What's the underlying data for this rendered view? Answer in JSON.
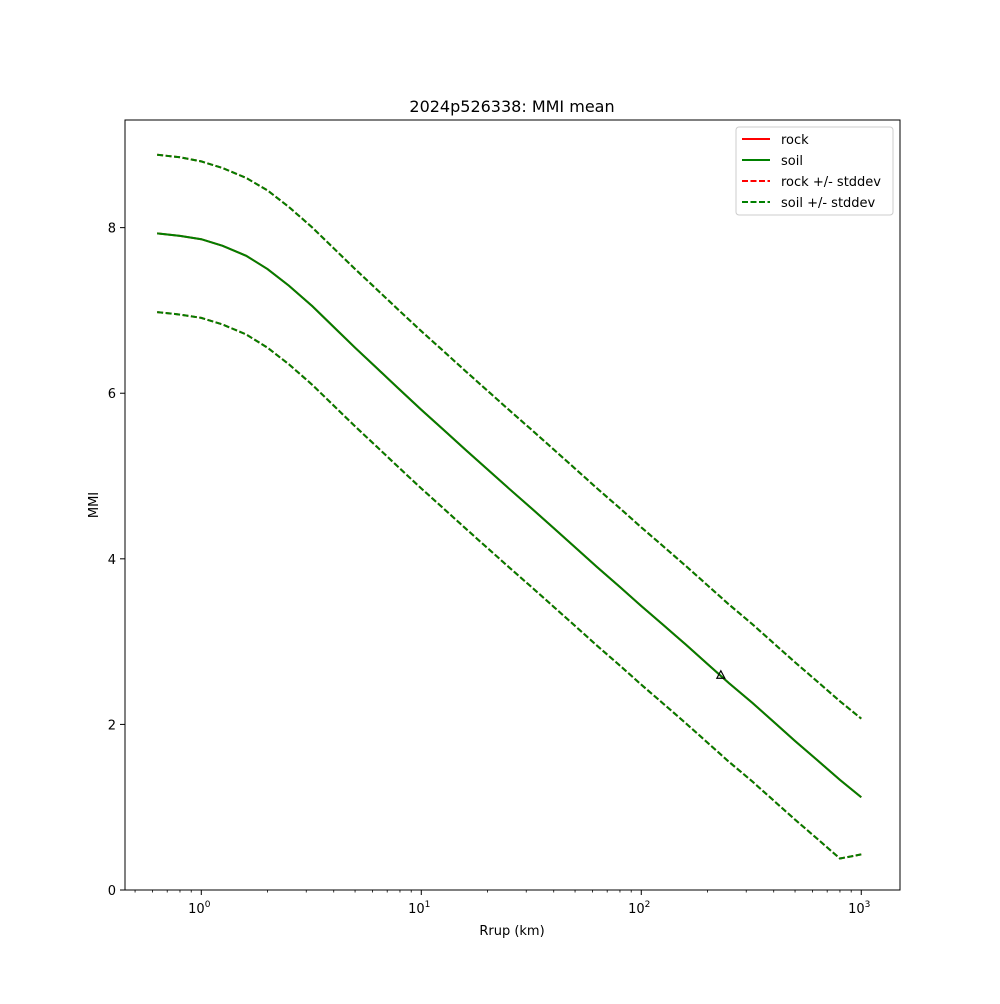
{
  "chart_data": {
    "type": "line",
    "title": "2024p526338: MMI mean",
    "xlabel": "Rrup (km)",
    "ylabel": "MMI",
    "xscale": "log",
    "xlim": [
      0.45,
      1500
    ],
    "ylim": [
      0,
      9.3
    ],
    "x_ticks": [
      {
        "value": 1,
        "base": "10",
        "exp": "0"
      },
      {
        "value": 10,
        "base": "10",
        "exp": "1"
      },
      {
        "value": 100,
        "base": "10",
        "exp": "2"
      },
      {
        "value": 1000,
        "base": "10",
        "exp": "3"
      }
    ],
    "y_ticks": [
      0,
      2,
      4,
      6,
      8
    ],
    "grid": false,
    "legend_position": "top-right",
    "x": [
      0.63,
      0.8,
      1,
      1.25,
      1.6,
      2,
      2.5,
      3.2,
      4,
      5,
      6.3,
      8,
      10,
      12.6,
      16,
      20,
      25,
      32,
      40,
      50,
      63,
      80,
      100,
      126,
      160,
      200,
      250,
      320,
      400,
      500,
      630,
      800,
      1000
    ],
    "series": [
      {
        "name": "rock",
        "color": "#ff0000",
        "style": "solid",
        "values": [
          7.93,
          7.9,
          7.86,
          7.78,
          7.66,
          7.5,
          7.3,
          7.05,
          6.8,
          6.55,
          6.3,
          6.04,
          5.8,
          5.56,
          5.31,
          5.08,
          4.85,
          4.6,
          4.37,
          4.14,
          3.9,
          3.66,
          3.43,
          3.2,
          2.96,
          2.73,
          2.5,
          2.26,
          2.03,
          1.8,
          1.57,
          1.33,
          1.12
        ]
      },
      {
        "name": "soil",
        "color": "#008000",
        "style": "solid",
        "values": [
          7.93,
          7.9,
          7.86,
          7.78,
          7.66,
          7.5,
          7.3,
          7.05,
          6.8,
          6.55,
          6.3,
          6.04,
          5.8,
          5.56,
          5.31,
          5.08,
          4.85,
          4.6,
          4.37,
          4.14,
          3.9,
          3.66,
          3.43,
          3.2,
          2.96,
          2.73,
          2.5,
          2.26,
          2.03,
          1.8,
          1.57,
          1.33,
          1.12
        ]
      },
      {
        "name": "rock +/- stddev",
        "color": "#ff0000",
        "style": "dashed",
        "values": [
          8.88,
          8.85,
          8.8,
          8.72,
          8.6,
          8.45,
          8.25,
          8.0,
          7.75,
          7.5,
          7.25,
          6.99,
          6.75,
          6.51,
          6.26,
          6.03,
          5.8,
          5.55,
          5.32,
          5.09,
          4.85,
          4.61,
          4.38,
          4.15,
          3.91,
          3.68,
          3.45,
          3.21,
          2.98,
          2.75,
          2.52,
          2.28,
          2.07
        ],
        "values_lower": [
          6.98,
          6.95,
          6.91,
          6.83,
          6.71,
          6.55,
          6.35,
          6.1,
          5.85,
          5.6,
          5.35,
          5.09,
          4.85,
          4.61,
          4.36,
          4.13,
          3.9,
          3.65,
          3.42,
          3.19,
          2.95,
          2.71,
          2.48,
          2.25,
          2.01,
          1.78,
          1.55,
          1.31,
          1.08,
          0.85,
          0.62,
          0.38,
          0.43
        ]
      },
      {
        "name": "soil +/- stddev",
        "color": "#008000",
        "style": "dashed",
        "values": [
          8.88,
          8.85,
          8.8,
          8.72,
          8.6,
          8.45,
          8.25,
          8.0,
          7.75,
          7.5,
          7.25,
          6.99,
          6.75,
          6.51,
          6.26,
          6.03,
          5.8,
          5.55,
          5.32,
          5.09,
          4.85,
          4.61,
          4.38,
          4.15,
          3.91,
          3.68,
          3.45,
          3.21,
          2.98,
          2.75,
          2.52,
          2.28,
          2.07
        ],
        "values_lower": [
          6.98,
          6.95,
          6.91,
          6.83,
          6.71,
          6.55,
          6.35,
          6.1,
          5.85,
          5.6,
          5.35,
          5.09,
          4.85,
          4.61,
          4.36,
          4.13,
          3.9,
          3.65,
          3.42,
          3.19,
          2.95,
          2.71,
          2.48,
          2.25,
          2.01,
          1.78,
          1.55,
          1.31,
          1.08,
          0.85,
          0.62,
          0.38,
          0.43
        ]
      }
    ],
    "observations": [
      {
        "x": 230,
        "y": 2.6,
        "marker": "triangle-open"
      }
    ]
  }
}
